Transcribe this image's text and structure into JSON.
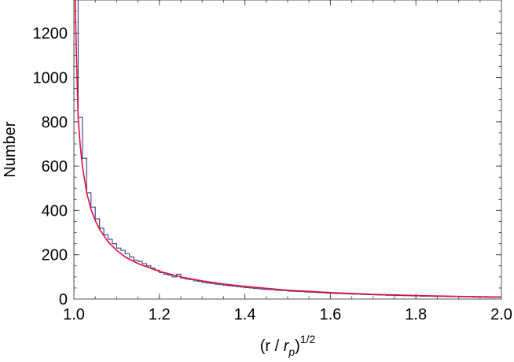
{
  "chart_data": {
    "type": "histogram",
    "title": "",
    "xlabel": "(r / r_p)^1/2",
    "xlabel_parts": {
      "open": "(r / ",
      "var": "r",
      "sub": "p",
      "close": ")",
      "sup": "1/2"
    },
    "ylabel": "Number",
    "xlim": [
      1.0,
      2.0
    ],
    "ylim": [
      0,
      1350
    ],
    "x_ticks": [
      {
        "value": 1.0,
        "label": "1.0"
      },
      {
        "value": 1.2,
        "label": "1.2"
      },
      {
        "value": 1.4,
        "label": "1.4"
      },
      {
        "value": 1.6,
        "label": "1.6"
      },
      {
        "value": 1.8,
        "label": "1.8"
      },
      {
        "value": 2.0,
        "label": "2.0"
      }
    ],
    "y_ticks": [
      {
        "value": 0,
        "label": "0"
      },
      {
        "value": 200,
        "label": "200"
      },
      {
        "value": 400,
        "label": "400"
      },
      {
        "value": 600,
        "label": "600"
      },
      {
        "value": 800,
        "label": "800"
      },
      {
        "value": 1000,
        "label": "1000"
      },
      {
        "value": 1200,
        "label": "1200"
      }
    ],
    "bin_start": 1.0,
    "bin_width": 0.01,
    "histogram_counts": [
      2400,
      820,
      635,
      480,
      415,
      362,
      320,
      290,
      270,
      250,
      230,
      220,
      205,
      190,
      175,
      170,
      160,
      150,
      140,
      130,
      120,
      112,
      108,
      100,
      112,
      95,
      90,
      88,
      82,
      80,
      75,
      72,
      70,
      67,
      65,
      62,
      60,
      58,
      56,
      54,
      52,
      50,
      48,
      46,
      44,
      43,
      42,
      40,
      39,
      38,
      36,
      35,
      34,
      33,
      32,
      31,
      30,
      29,
      28,
      27,
      26,
      25,
      25,
      24,
      23,
      22,
      22,
      21,
      20,
      20,
      19,
      18,
      18,
      17,
      17,
      16,
      16,
      15,
      15,
      14,
      14,
      13,
      13,
      13,
      12,
      12,
      12,
      11,
      11,
      11,
      10,
      10,
      10,
      9,
      9,
      9,
      8,
      8,
      8,
      8
    ],
    "fit_curve": {
      "x": [
        1.003,
        1.005,
        1.008,
        1.01,
        1.015,
        1.02,
        1.03,
        1.04,
        1.05,
        1.06,
        1.08,
        1.1,
        1.12,
        1.15,
        1.2,
        1.25,
        1.3,
        1.35,
        1.4,
        1.5,
        1.6,
        1.7,
        1.8,
        1.9,
        2.0
      ],
      "y": [
        1350,
        1180,
        950,
        820,
        690,
        600,
        480,
        405,
        355,
        315,
        258,
        220,
        190,
        160,
        125,
        100,
        82,
        68,
        57,
        40,
        29,
        21,
        16,
        12,
        9
      ]
    },
    "colors": {
      "histogram": "#4a4a9c",
      "fit": "#e0103a",
      "frame": "#555555"
    }
  }
}
